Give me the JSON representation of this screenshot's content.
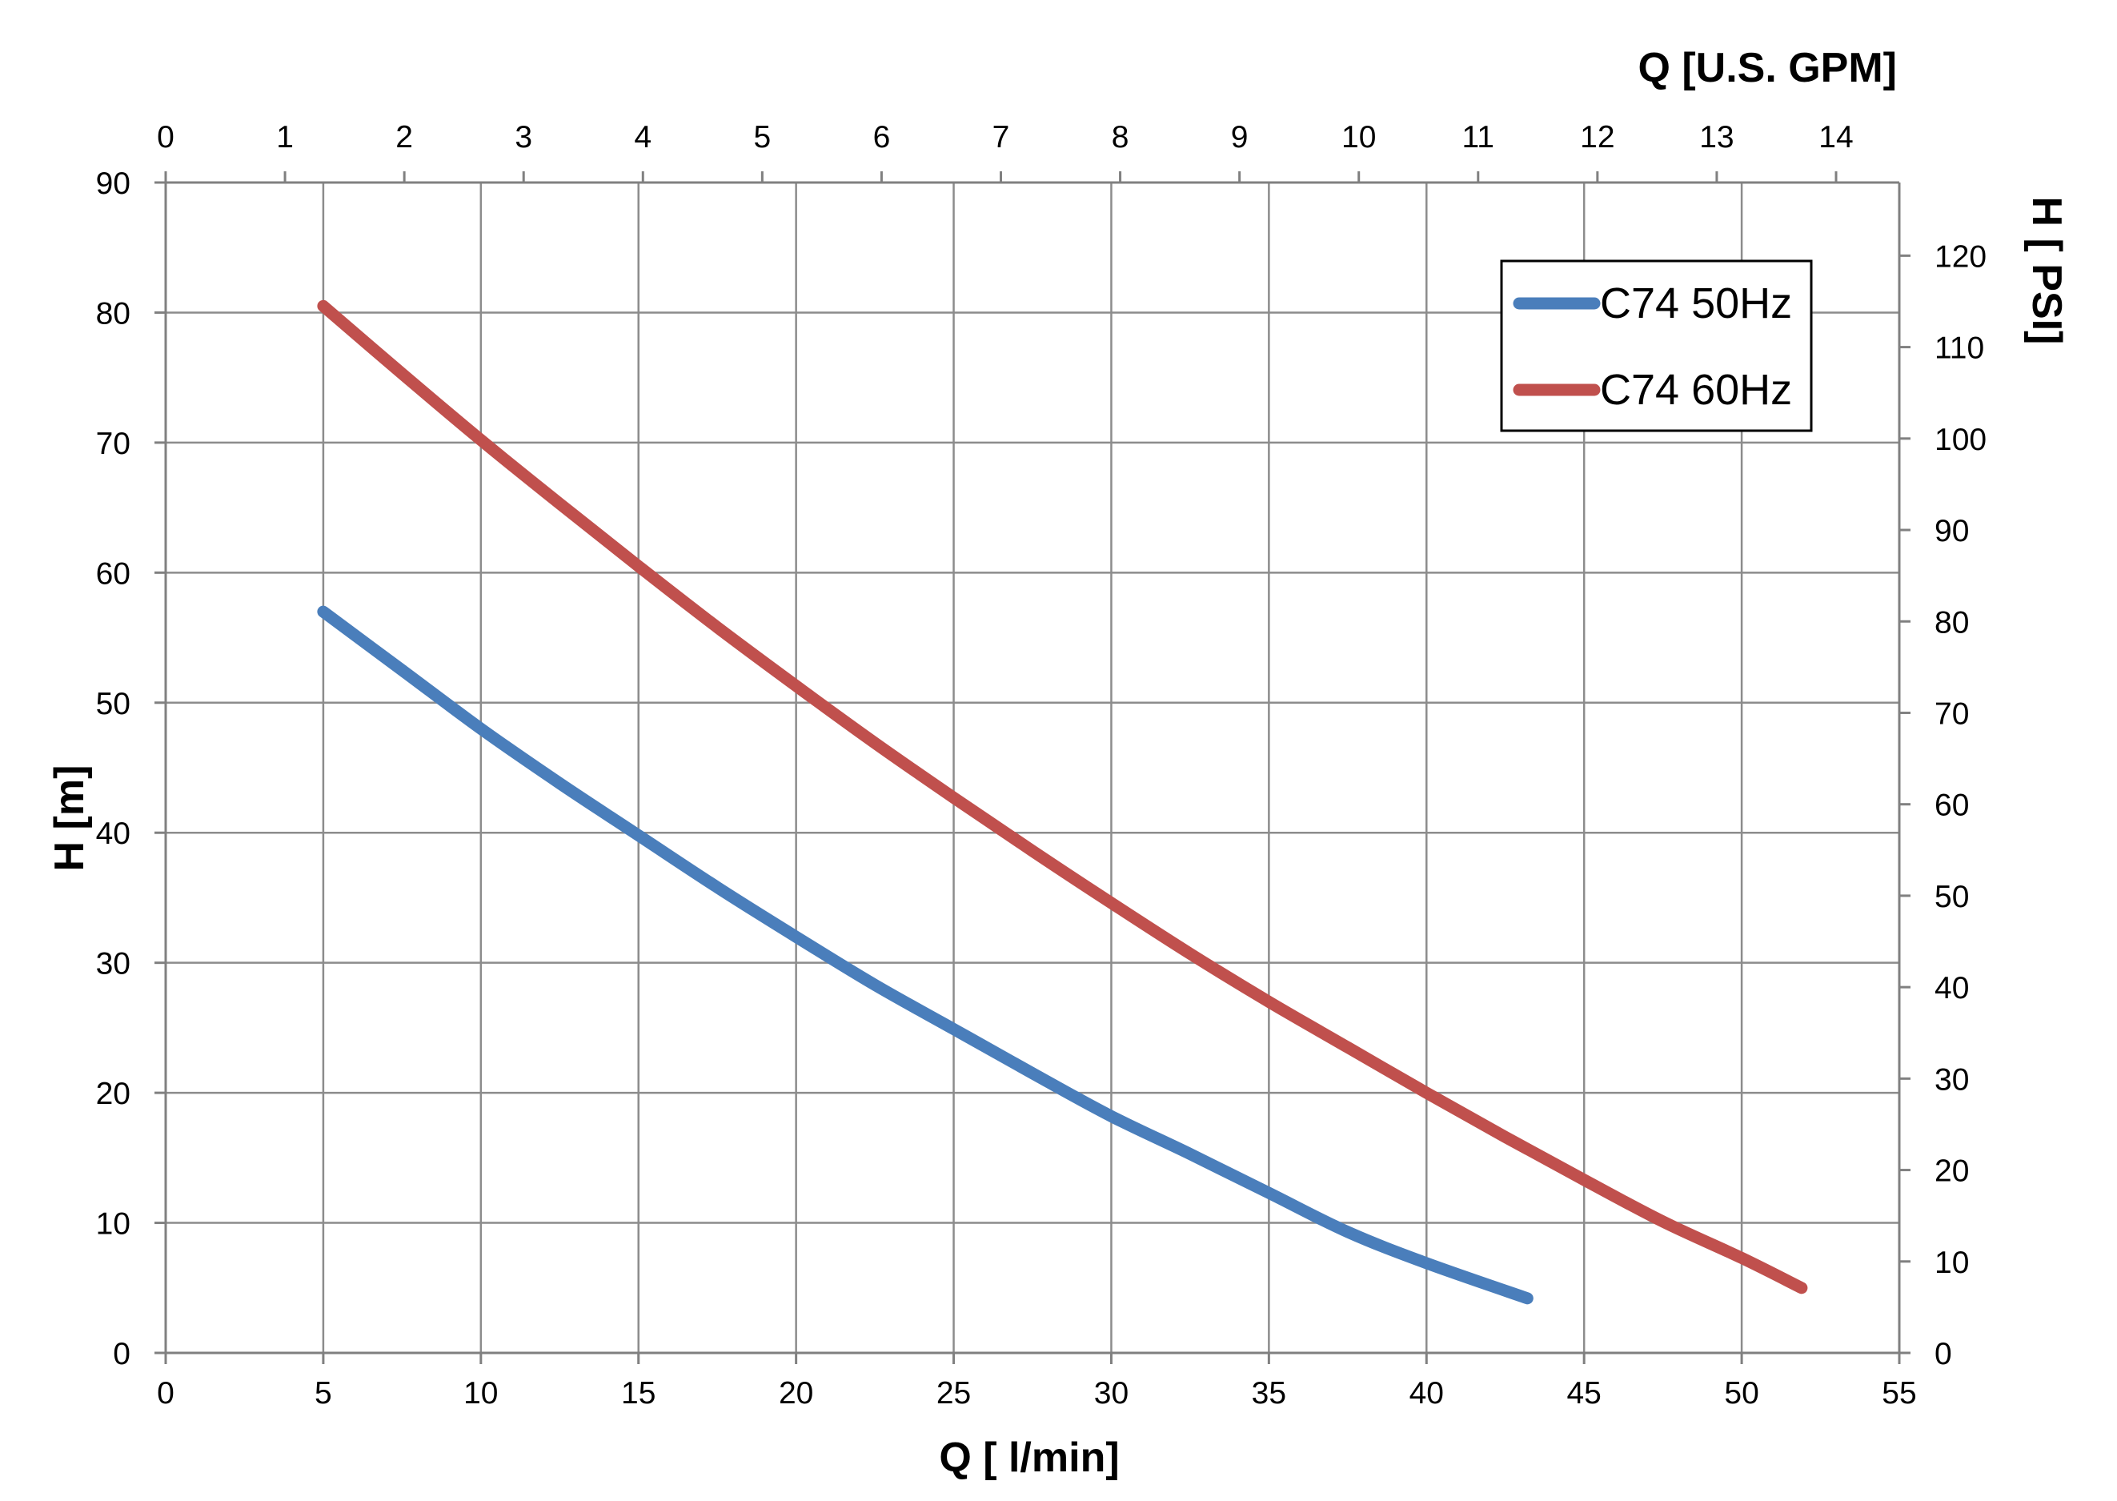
{
  "chart_data": {
    "type": "line",
    "xlabel": "Q [ l/min]",
    "ylabel": "H [m]",
    "x2label": "Q  [U.S. GPM]",
    "y2label": "H [ PSI]",
    "xlim": [
      0,
      55
    ],
    "ylim": [
      0,
      90
    ],
    "x2lim": [
      0,
      14.53
    ],
    "y2lim": [
      0,
      128
    ],
    "x_ticks": [
      0,
      5,
      10,
      15,
      20,
      25,
      30,
      35,
      40,
      45,
      50,
      55
    ],
    "y_ticks": [
      0,
      10,
      20,
      30,
      40,
      50,
      60,
      70,
      80,
      90
    ],
    "x2_ticks": [
      0,
      1,
      2,
      3,
      4,
      5,
      6,
      7,
      8,
      9,
      10,
      11,
      12,
      13,
      14
    ],
    "y2_ticks": [
      0,
      10,
      20,
      30,
      40,
      50,
      60,
      70,
      80,
      90,
      100,
      110,
      120
    ],
    "grid": true,
    "legend_position": "top-right",
    "series": [
      {
        "name": "C74 50Hz",
        "color": "#4a7ebb",
        "x": [
          5,
          7.5,
          10,
          12.5,
          15,
          17.5,
          20,
          22.5,
          25,
          27.5,
          30,
          32.5,
          35,
          37.5,
          40,
          43.2
        ],
        "y": [
          57,
          52.5,
          48,
          43.8,
          39.8,
          35.8,
          32,
          28.3,
          24.9,
          21.5,
          18.2,
          15.3,
          12.3,
          9.3,
          6.9,
          4.2
        ]
      },
      {
        "name": "C74 60Hz",
        "color": "#c0504d",
        "x": [
          5,
          7.5,
          10,
          12.5,
          15,
          17.5,
          20,
          22.5,
          25,
          27.5,
          30,
          32.5,
          35,
          37.5,
          40,
          42.5,
          45,
          47.5,
          50,
          51.9
        ],
        "y": [
          80.5,
          75.3,
          70.2,
          65.3,
          60.5,
          55.8,
          51.3,
          46.9,
          42.7,
          38.6,
          34.6,
          30.7,
          27,
          23.5,
          20,
          16.6,
          13.3,
          10.1,
          7.3,
          5
        ]
      }
    ]
  }
}
